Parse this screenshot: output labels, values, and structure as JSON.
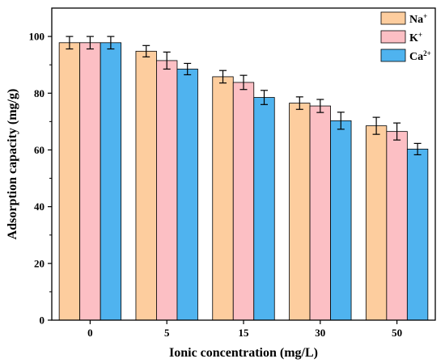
{
  "chart_data": {
    "type": "bar",
    "xlabel": "Ionic concentration (mg/L)",
    "ylabel": "Adsorption capacity (mg/g)",
    "ylim": [
      0,
      110
    ],
    "yticks": [
      0,
      20,
      40,
      60,
      80,
      100
    ],
    "categories": [
      "0",
      "5",
      "15",
      "30",
      "50"
    ],
    "series": [
      {
        "name": "Na",
        "charge": "+",
        "color": "#fdcd9e",
        "values": [
          97.8,
          94.8,
          85.8,
          76.5,
          68.5
        ],
        "errors": [
          2.2,
          2.0,
          2.2,
          2.2,
          3.0
        ]
      },
      {
        "name": "K",
        "charge": "+",
        "color": "#fcbfc4",
        "values": [
          97.8,
          91.5,
          83.8,
          75.5,
          66.5
        ],
        "errors": [
          2.2,
          3.0,
          2.5,
          2.3,
          3.0
        ]
      },
      {
        "name": "Ca",
        "charge": "2+",
        "color": "#4fb3ef",
        "values": [
          97.8,
          88.5,
          78.5,
          70.3,
          60.3
        ],
        "errors": [
          2.2,
          2.0,
          2.5,
          3.0,
          2.0
        ]
      }
    ],
    "legend_position": "top-right",
    "grid": false
  }
}
